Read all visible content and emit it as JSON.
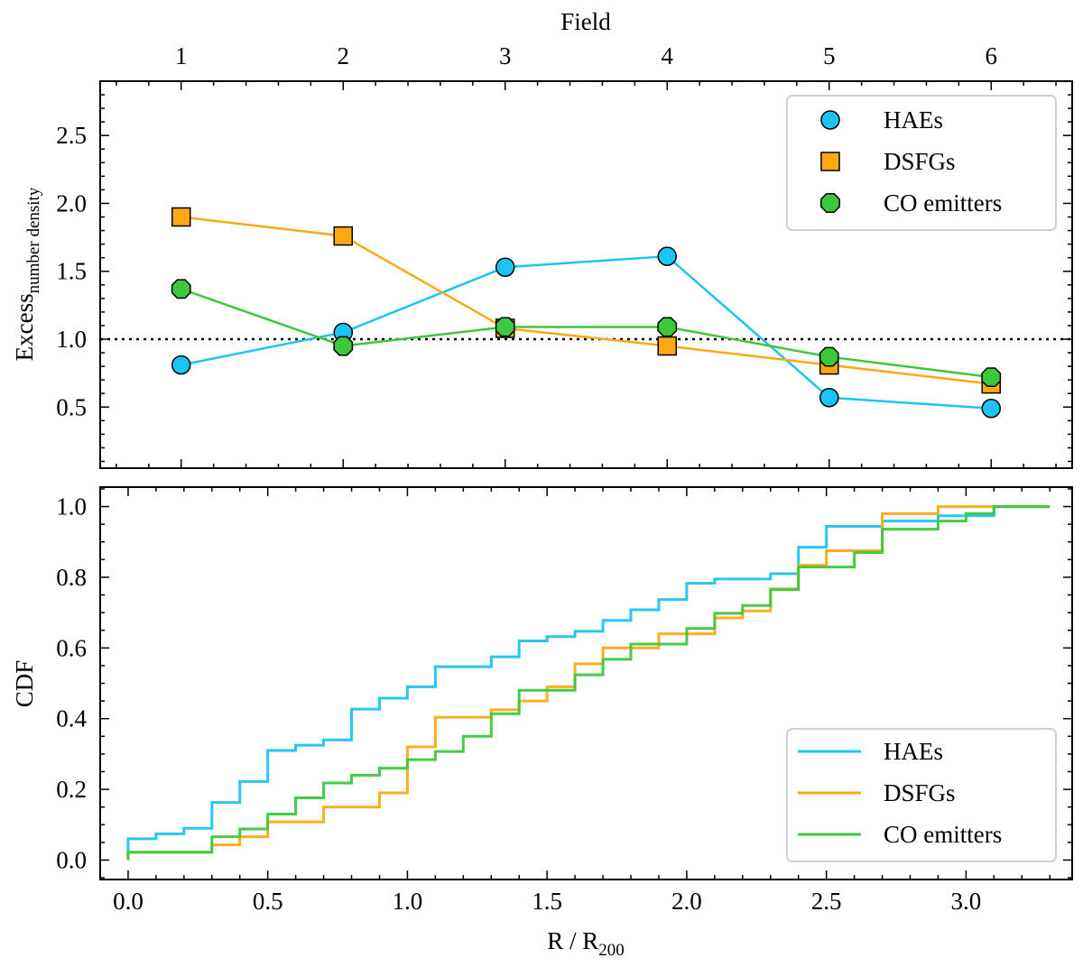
{
  "chart_data": [
    {
      "type": "line",
      "panel": "top",
      "title": "",
      "xlabel_top": "Field",
      "ylabel": "Excess",
      "ylabel_subscript": "number density",
      "x": [
        1,
        2,
        3,
        4,
        5,
        6
      ],
      "xtick_labels": [
        "1",
        "2",
        "3",
        "4",
        "5",
        "6"
      ],
      "xlim": [
        0.5,
        6.5
      ],
      "ylim": [
        0.05,
        2.9
      ],
      "yticks": [
        0.5,
        1.0,
        1.5,
        2.0,
        2.5
      ],
      "ytick_labels": [
        "0.5",
        "1.0",
        "1.5",
        "2.0",
        "2.5"
      ],
      "reference_line": 1.0,
      "legend_position": "top-right",
      "series": [
        {
          "name": "HAEs",
          "marker": "circle",
          "color": "#1ac4f5",
          "values": [
            0.81,
            1.05,
            1.53,
            1.61,
            0.57,
            0.49
          ]
        },
        {
          "name": "DSFGs",
          "marker": "square",
          "color": "#ffa812",
          "values": [
            1.9,
            1.76,
            1.08,
            0.95,
            0.81,
            0.67
          ]
        },
        {
          "name": "CO emitters",
          "marker": "octagon",
          "color": "#3cc83c",
          "values": [
            1.37,
            0.95,
            1.09,
            1.09,
            0.87,
            0.72
          ]
        }
      ]
    },
    {
      "type": "line",
      "panel": "bottom",
      "drawstyle": "steps",
      "xlabel": "R / R",
      "xlabel_subscript": "200",
      "ylabel": "CDF",
      "xlim": [
        -0.1,
        3.38
      ],
      "ylim": [
        -0.055,
        1.055
      ],
      "xticks": [
        0.0,
        0.5,
        1.0,
        1.5,
        2.0,
        2.5,
        3.0
      ],
      "xtick_labels": [
        "0.0",
        "0.5",
        "1.0",
        "1.5",
        "2.0",
        "2.5",
        "3.0"
      ],
      "yticks": [
        0.0,
        0.2,
        0.4,
        0.6,
        0.8,
        1.0
      ],
      "ytick_labels": [
        "0.0",
        "0.2",
        "0.4",
        "0.6",
        "0.8",
        "1.0"
      ],
      "bin_width": 0.1,
      "bin_start": 0.0,
      "legend_position": "bottom-right",
      "series": [
        {
          "name": "HAEs",
          "color": "#1ac4f5",
          "values": [
            0.06,
            0.074,
            0.09,
            0.163,
            0.222,
            0.31,
            0.325,
            0.34,
            0.427,
            0.458,
            0.49,
            0.547,
            0.547,
            0.575,
            0.62,
            0.632,
            0.647,
            0.678,
            0.708,
            0.737,
            0.783,
            0.795,
            0.795,
            0.81,
            0.885,
            0.944,
            0.944,
            0.959,
            0.959,
            0.974,
            0.974,
            1.0,
            1.0
          ]
        },
        {
          "name": "DSFGs",
          "color": "#ffa812",
          "values": [
            0.022,
            0.022,
            0.022,
            0.043,
            0.066,
            0.108,
            0.108,
            0.15,
            0.15,
            0.19,
            0.32,
            0.404,
            0.404,
            0.425,
            0.45,
            0.49,
            0.555,
            0.6,
            0.6,
            0.64,
            0.64,
            0.685,
            0.705,
            0.767,
            0.834,
            0.875,
            0.875,
            0.98,
            0.98,
            1.0,
            1.0,
            1.0,
            1.0
          ]
        },
        {
          "name": "CO emitters",
          "color": "#3cc83c",
          "values": [
            0.022,
            0.022,
            0.022,
            0.066,
            0.088,
            0.13,
            0.176,
            0.218,
            0.24,
            0.26,
            0.284,
            0.307,
            0.35,
            0.414,
            0.48,
            0.48,
            0.524,
            0.568,
            0.611,
            0.611,
            0.655,
            0.698,
            0.72,
            0.765,
            0.829,
            0.829,
            0.87,
            0.936,
            0.936,
            0.959,
            0.98,
            1.0,
            1.0
          ]
        }
      ]
    }
  ]
}
